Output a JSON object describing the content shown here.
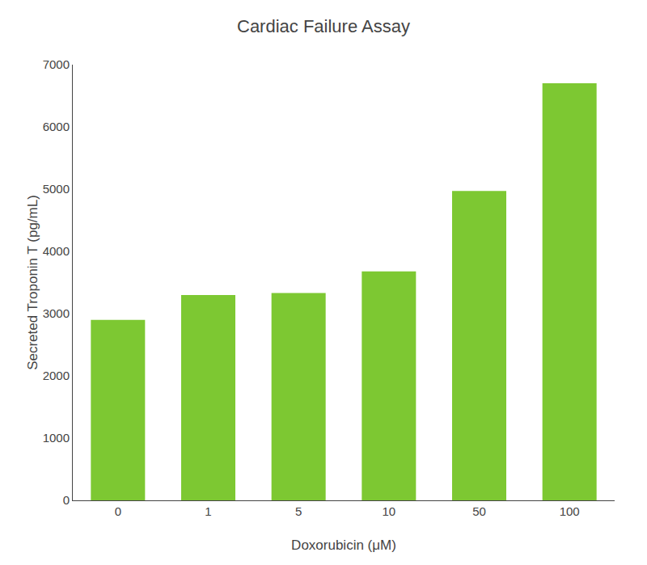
{
  "chart_data": {
    "type": "bar",
    "title": "Cardiac Failure Assay",
    "xlabel": "Doxorubicin (μM)",
    "ylabel": "Secreted Troponin T (pg/mL)",
    "categories": [
      "0",
      "1",
      "5",
      "10",
      "50",
      "100"
    ],
    "values": [
      2900,
      3300,
      3330,
      3680,
      4970,
      6700
    ],
    "color": "#7DC832",
    "ylim": [
      0,
      7000
    ],
    "yticks": [
      0,
      1000,
      2000,
      3000,
      4000,
      5000,
      6000,
      7000
    ],
    "grid": false
  }
}
